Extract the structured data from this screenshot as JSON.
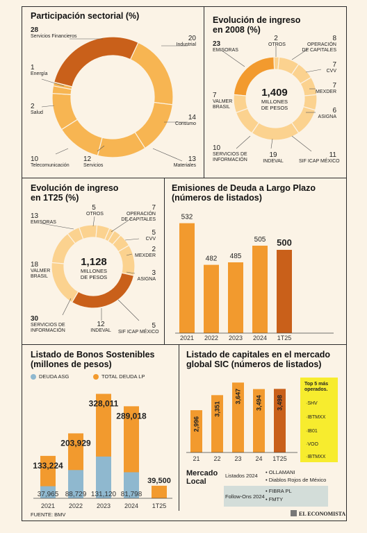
{
  "panels": {
    "sectorial": {
      "title": "Participación sectorial (%)",
      "labels": [
        {
          "value": "28",
          "name": "Servicios Financieros"
        },
        {
          "value": "20",
          "name": "Industrial"
        },
        {
          "value": "1",
          "name": "Energía"
        },
        {
          "value": "2",
          "name": "Salud"
        },
        {
          "value": "14",
          "name": "Consumo"
        },
        {
          "value": "10",
          "name": "Telecomunicación"
        },
        {
          "value": "12",
          "name": "Servicios"
        },
        {
          "value": "13",
          "name": "Materiales"
        }
      ]
    },
    "ingreso2008": {
      "title_line1": "Evolución de ingreso",
      "title_line2": "en 2008 (%)",
      "center_value": "1,409",
      "center_unit_1": "MILLONES",
      "center_unit_2": "DE PESOS"
    },
    "ingreso1t25": {
      "title_line1": "Evolución de ingreso",
      "title_line2": "en 1T25 (%)",
      "center_value": "1,128",
      "center_unit_1": "MILLONES",
      "center_unit_2": "DE PESOS"
    },
    "emisiones": {
      "title_line1": "Emisiones de Deuda a Largo Plazo",
      "title_line2": "(números de listados)"
    },
    "bonos": {
      "title_line1": "Listado de Bonos Sostenibles",
      "title_line2": "(millones de pesos)",
      "legend_asg": "DEUDA ASG",
      "legend_total": "TOTAL DEUDA LP"
    },
    "sic": {
      "title_line1": "Listado de capitales en el mercado",
      "title_line2": "global SIC (números de listados)",
      "top5_title_1": "Top 5 más",
      "top5_title_2": "operados.",
      "top5": [
        "·SHV",
        "·IBTMXX",
        "·IB01",
        "·VOO",
        "·IBTMXX"
      ]
    },
    "mercado": {
      "title_1": "Mercado",
      "title_2": "Local",
      "listados_label": "Listados 2024",
      "listados": [
        "• OLLAMANI",
        "• Diablos Rojos de México"
      ],
      "followons_label": "Follow-Ons 2024",
      "followons": [
        "• FIBRA PL",
        "• FMTY"
      ]
    }
  },
  "footer": {
    "source": "FUENTE: BMV",
    "logo": "EL ECONOMISTA"
  },
  "colors": {
    "dark": "#c9601a",
    "mid": "#f29a2e",
    "light": "#f7b552",
    "pale": "#fbd28f",
    "blue": "#8fb8cf",
    "bg": "#fbf3e6"
  },
  "chart_data": [
    {
      "type": "pie",
      "title": "Participación sectorial (%)",
      "categories": [
        "Servicios Financieros",
        "Industrial",
        "Consumo",
        "Materiales",
        "Servicios",
        "Telecomunicación",
        "Salud",
        "Energía"
      ],
      "values": [
        28,
        20,
        14,
        13,
        12,
        10,
        2,
        1
      ]
    },
    {
      "type": "pie",
      "title": "Evolución de ingreso en 2008 (%)",
      "categories": [
        "EMISORAS",
        "OTROS",
        "OPERACIÓN DE CAPITALES",
        "CVV",
        "MEXDER",
        "ASIGNA",
        "SIF ICAP MÉXICO",
        "INDEVAL",
        "SERVICIOS DE INFORMACIÓN",
        "VALMER BRASIL"
      ],
      "values": [
        23,
        2,
        8,
        7,
        7,
        6,
        11,
        19,
        10,
        7
      ]
    },
    {
      "type": "pie",
      "title": "Evolución de ingreso en 1T25 (%)",
      "categories": [
        "EMISORAS",
        "OTROS",
        "OPERACIÓN DE CAPITALES",
        "CVV",
        "MEXDER",
        "ASIGNA",
        "SIF ICAP MÉXICO",
        "INDEVAL",
        "SERVICIOS DE INFORMACIÓN",
        "VALMER BRASIL"
      ],
      "values": [
        13,
        5,
        7,
        5,
        2,
        3,
        5,
        12,
        30,
        18
      ]
    },
    {
      "type": "bar",
      "title": "Emisiones de Deuda a Largo Plazo (números de listados)",
      "categories": [
        "2021",
        "2022",
        "2023",
        "2024",
        "1T25"
      ],
      "values": [
        532,
        482,
        485,
        505,
        500
      ],
      "ylim": [
        400,
        540
      ]
    },
    {
      "type": "bar",
      "title": "Listado de Bonos Sostenibles (millones de pesos)",
      "categories": [
        "2021",
        "2022",
        "2023",
        "2024",
        "1T25"
      ],
      "series": [
        {
          "name": "DEUDA ASG",
          "values": [
            37965,
            88729,
            131120,
            81798,
            null
          ],
          "labels": [
            "37,965",
            "88,729",
            "131,120",
            "81,798",
            ""
          ]
        },
        {
          "name": "TOTAL DEUDA LP",
          "values": [
            133224,
            203929,
            328011,
            289018,
            39500
          ],
          "labels": [
            "133,224",
            "203,929",
            "328,011",
            "289,018",
            "39,500"
          ]
        }
      ],
      "ylim": [
        0,
        340000
      ]
    },
    {
      "type": "bar",
      "title": "Listado de capitales en el mercado global SIC (números de listados)",
      "categories": [
        "21",
        "22",
        "23",
        "24",
        "1T25"
      ],
      "values": [
        2996,
        3351,
        3647,
        3494,
        3498
      ],
      "labels": [
        "2,996",
        "3,351",
        "3,647",
        "3,494",
        "3,498"
      ],
      "ylim": [
        2000,
        3700
      ]
    }
  ]
}
